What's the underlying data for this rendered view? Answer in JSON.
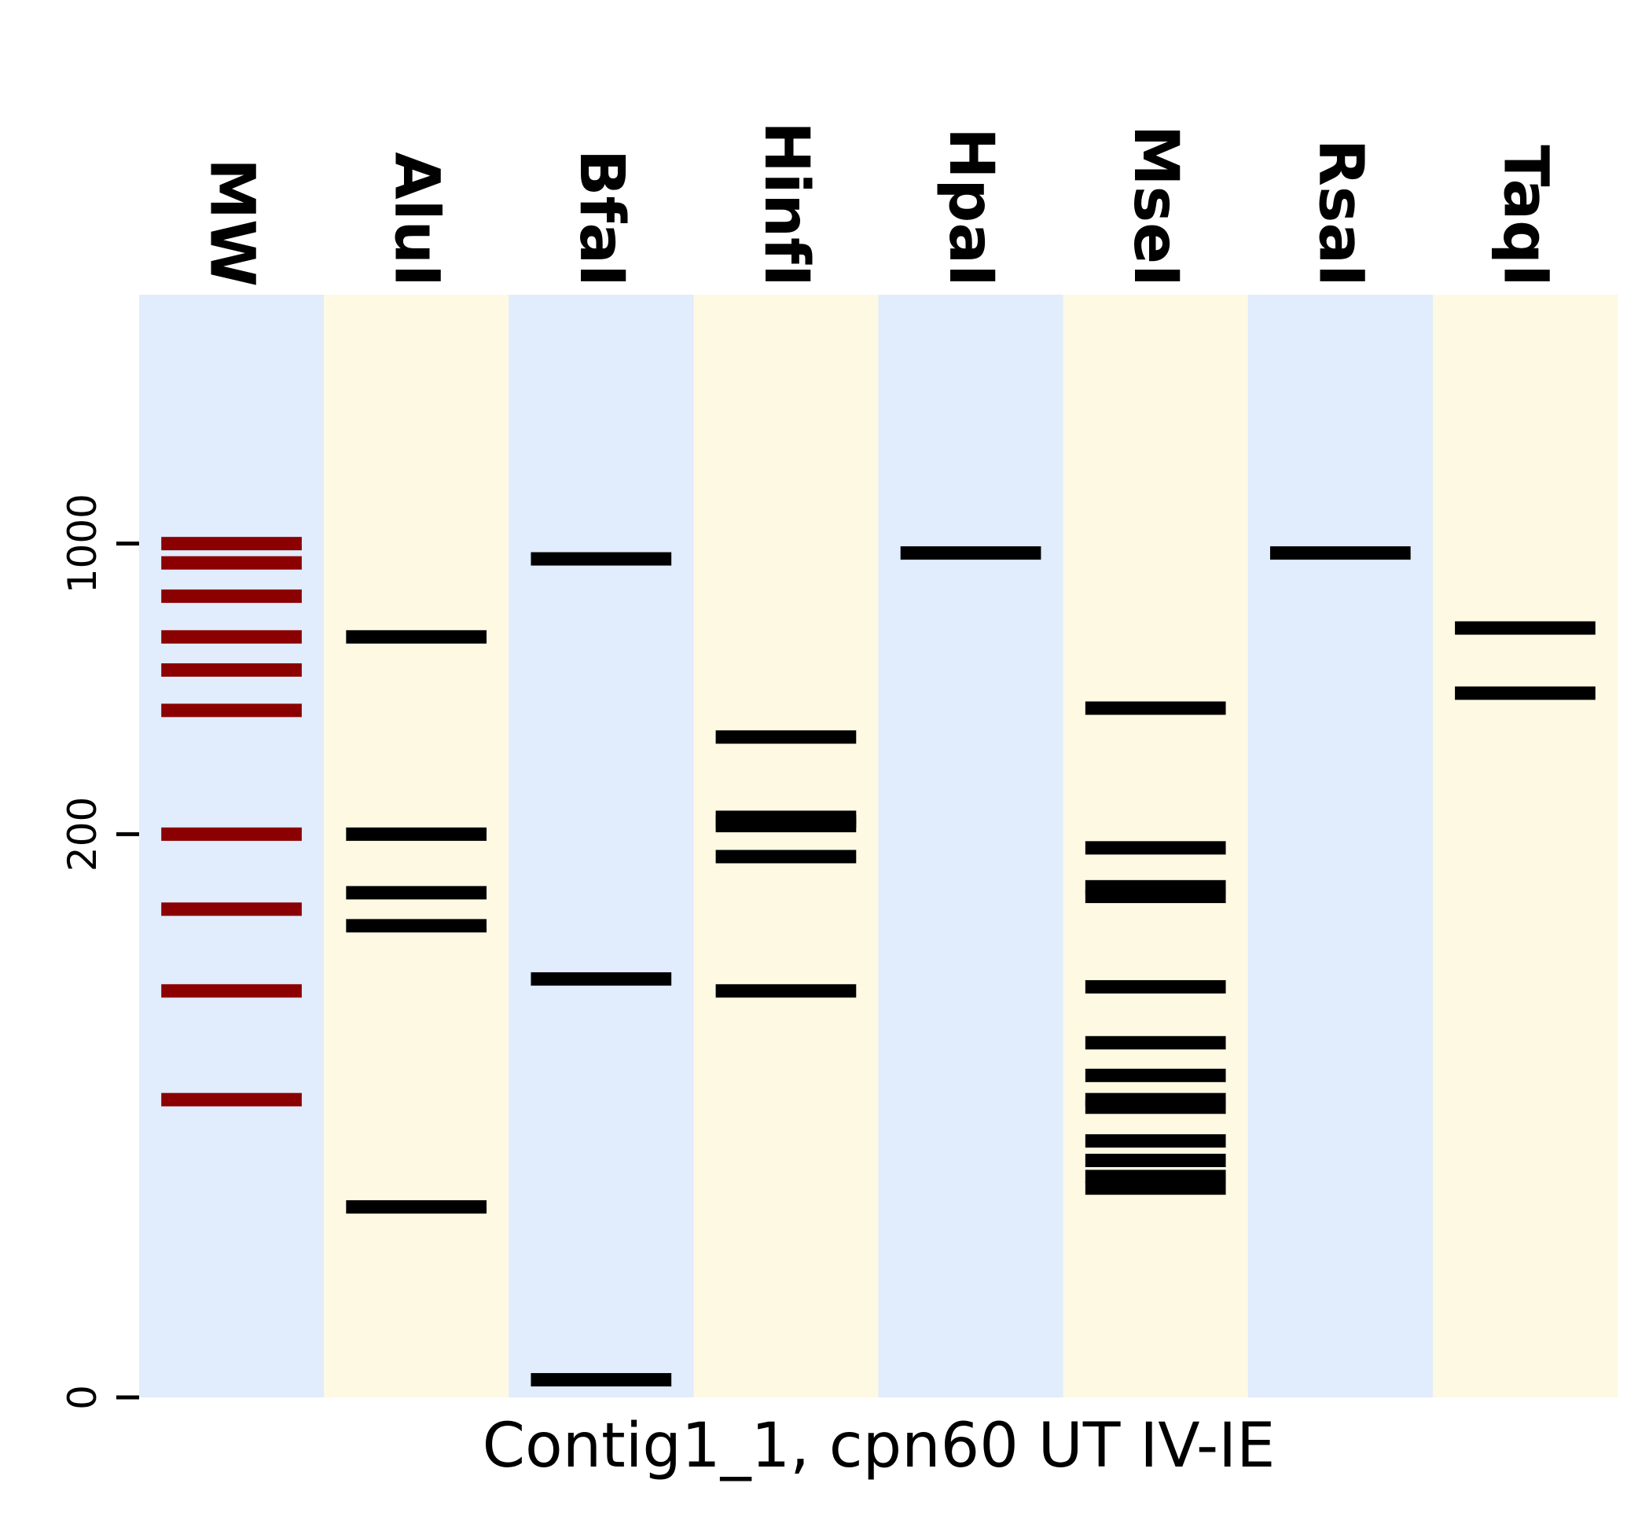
{
  "chart_data": {
    "type": "gel",
    "title": "",
    "xlabel": "Contig1_1, cpn60 UT IV-IE",
    "ylabel": "",
    "yscale": "log",
    "ylim": [
      0,
      1300
    ],
    "yticks": [
      {
        "value": 1000,
        "label": "1000"
      },
      {
        "value": 200,
        "label": "200"
      },
      {
        "value": 0,
        "label": "0"
      }
    ],
    "grid": false,
    "legend": "none",
    "lanes": [
      {
        "name": "MW",
        "band_color": "#8b0000",
        "lane_color": "#e1ecfc",
        "bands": [
          1000,
          900,
          750,
          600,
          500,
          400,
          200,
          130,
          80,
          40
        ]
      },
      {
        "name": "AluI",
        "band_color": "#000000",
        "lane_color": "#fdf9e3",
        "bands": [
          600,
          200,
          143,
          118,
          18
        ]
      },
      {
        "name": "BfaI",
        "band_color": "#000000",
        "lane_color": "#e1ecfc",
        "bands": [
          1,
          920,
          86
        ]
      },
      {
        "name": "HinfI",
        "band_color": "#000000",
        "lane_color": "#fdf9e3",
        "bands": [
          345,
          220,
          215,
          210,
          176,
          80
        ]
      },
      {
        "name": "HpaI",
        "band_color": "#000000",
        "lane_color": "#e1ecfc",
        "bands": [
          950
        ]
      },
      {
        "name": "MseI",
        "band_color": "#000000",
        "lane_color": "#fdf9e3",
        "bands": [
          405,
          185,
          148,
          140,
          82,
          58,
          47,
          40,
          38,
          30,
          26,
          23,
          21
        ]
      },
      {
        "name": "RsaI",
        "band_color": "#000000",
        "lane_color": "#e1ecfc",
        "bands": [
          950
        ]
      },
      {
        "name": "TaqI",
        "band_color": "#000000",
        "lane_color": "#fdf9e3",
        "bands": [
          630,
          440
        ]
      }
    ]
  }
}
